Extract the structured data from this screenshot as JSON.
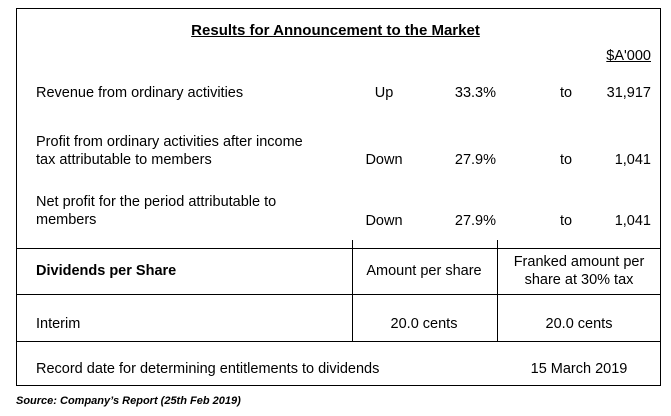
{
  "title": "Results for Announcement to the Market",
  "unit": "$A'000",
  "rows": [
    {
      "label": "Revenue from ordinary activities",
      "direction": "Up",
      "percent": "33.3%",
      "to": "to",
      "value": "31,917"
    },
    {
      "label_line1": "Profit from ordinary activities after income",
      "label_line2": "tax attributable to members",
      "direction": "Down",
      "percent": "27.9%",
      "to": "to",
      "value": "1,041"
    },
    {
      "label_line1": "Net profit for the period attributable to",
      "label_line2": "members",
      "direction": "Down",
      "percent": "27.9%",
      "to": "to",
      "value": "1,041"
    }
  ],
  "dividends": {
    "header_label": "Dividends per Share",
    "col1_header": "Amount per share",
    "col2_header_line1": "Franked amount per",
    "col2_header_line2": "share at 30% tax",
    "row_label": "Interim",
    "row_amount": "20.0 cents",
    "row_franked": "20.0 cents"
  },
  "record": {
    "label": "Record date for determining entitlements to dividends",
    "date": "15 March 2019"
  },
  "source": "Source: Company’s Report (25th Feb 2019)"
}
